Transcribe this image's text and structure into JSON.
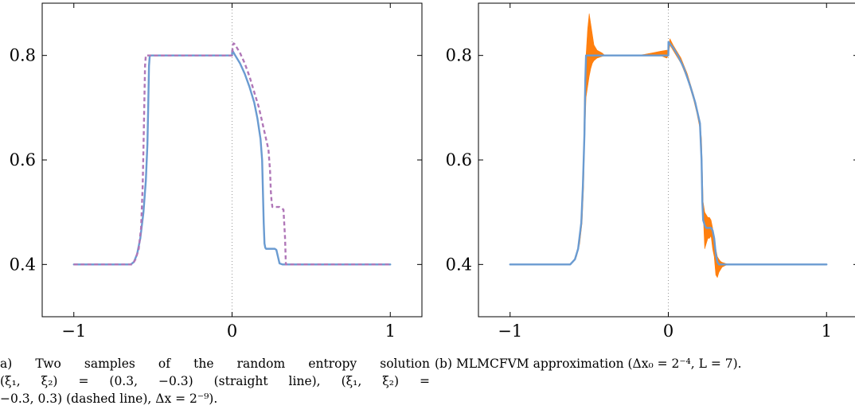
{
  "panels": [
    {
      "x_ticks": [
        "−1",
        "0",
        "1"
      ],
      "y_ticks": [
        "0.4",
        "0.6",
        "0.8"
      ],
      "caption_lines": [
        "a)  Two  samples  of  the  random  entropy  solution",
        "(ξ₁, ξ₂)    =    (0.3, −0.3)  (straight  line),  (ξ₁, ξ₂)    =",
        "−0.3, 0.3) (dashed line), Δx = 2⁻⁹)."
      ]
    },
    {
      "x_ticks": [
        "−1",
        "0",
        "1"
      ],
      "y_ticks": [
        "0.4",
        "0.6",
        "0.8"
      ],
      "caption_lines": [
        "(b) MLMCFVM approximation (Δx₀ = 2⁻⁴, L = 7)."
      ]
    }
  ],
  "colors": {
    "blue": "#6a9bd1",
    "purple": "#b077b8",
    "orange": "#ff7f0e",
    "zeroline": "#999999"
  },
  "chart_data": [
    {
      "type": "line",
      "xlim": [
        -1.2,
        1.2
      ],
      "ylim": [
        0.3,
        0.9
      ],
      "grid": false,
      "series": [
        {
          "style": "solid",
          "color": "#6a9bd1",
          "x": [
            -1,
            -0.64,
            -0.62,
            -0.6,
            -0.58,
            -0.56,
            -0.545,
            -0.535,
            -0.53,
            -0.525,
            -0.52,
            -0.51,
            0,
            0.001,
            0.02,
            0.05,
            0.08,
            0.11,
            0.14,
            0.16,
            0.18,
            0.19,
            0.195,
            0.2,
            0.205,
            0.21,
            0.215,
            0.22,
            0.25,
            0.27,
            0.28,
            0.29,
            0.3,
            0.32,
            1
          ],
          "y": [
            0.4,
            0.4,
            0.405,
            0.42,
            0.45,
            0.5,
            0.56,
            0.63,
            0.7,
            0.78,
            0.8,
            0.8,
            0.8,
            0.81,
            0.8,
            0.785,
            0.765,
            0.74,
            0.71,
            0.68,
            0.64,
            0.6,
            0.54,
            0.48,
            0.44,
            0.432,
            0.43,
            0.43,
            0.43,
            0.43,
            0.428,
            0.415,
            0.402,
            0.4,
            0.4
          ]
        },
        {
          "style": "dashed",
          "color": "#b077b8",
          "x": [
            -1,
            -0.63,
            -0.61,
            -0.59,
            -0.575,
            -0.565,
            -0.56,
            -0.555,
            -0.55,
            -0.545,
            -0.54,
            0,
            0.005,
            0.01,
            0.015,
            0.02,
            0.05,
            0.08,
            0.11,
            0.14,
            0.17,
            0.2,
            0.23,
            0.24,
            0.245,
            0.25,
            0.255,
            0.26,
            0.3,
            0.325,
            0.335,
            0.34,
            1
          ],
          "y": [
            0.4,
            0.4,
            0.41,
            0.43,
            0.47,
            0.55,
            0.62,
            0.7,
            0.78,
            0.8,
            0.8,
            0.8,
            0.82,
            0.823,
            0.822,
            0.82,
            0.805,
            0.785,
            0.76,
            0.73,
            0.7,
            0.66,
            0.62,
            0.58,
            0.54,
            0.52,
            0.51,
            0.51,
            0.51,
            0.505,
            0.45,
            0.4,
            0.4
          ]
        }
      ]
    },
    {
      "type": "area",
      "xlim": [
        -1.2,
        1.2
      ],
      "ylim": [
        0.3,
        0.9
      ],
      "grid": false,
      "series": [
        {
          "style": "band",
          "color": "#ff7f0e",
          "x": [
            -1,
            -0.63,
            -0.6,
            -0.58,
            -0.56,
            -0.545,
            -0.535,
            -0.53,
            -0.52,
            -0.51,
            -0.5,
            -0.49,
            -0.48,
            -0.47,
            -0.45,
            -0.42,
            -0.4,
            -0.3,
            -0.2,
            -0.15,
            -0.1,
            -0.05,
            -0.01,
            0,
            0.01,
            0.03,
            0.05,
            0.08,
            0.1,
            0.12,
            0.14,
            0.16,
            0.18,
            0.2,
            0.21,
            0.22,
            0.23,
            0.24,
            0.25,
            0.26,
            0.27,
            0.28,
            0.29,
            0.3,
            0.31,
            0.32,
            0.33,
            0.34,
            0.36,
            0.38,
            0.4,
            0.42,
            0.45,
            1
          ],
          "lower": [
            0.4,
            0.4,
            0.405,
            0.415,
            0.44,
            0.48,
            0.55,
            0.63,
            0.72,
            0.74,
            0.76,
            0.775,
            0.785,
            0.79,
            0.795,
            0.798,
            0.8,
            0.8,
            0.8,
            0.8,
            0.8,
            0.8,
            0.795,
            0.8,
            0.82,
            0.81,
            0.8,
            0.785,
            0.77,
            0.755,
            0.735,
            0.715,
            0.69,
            0.66,
            0.6,
            0.5,
            0.43,
            0.44,
            0.45,
            0.45,
            0.455,
            0.43,
            0.415,
            0.38,
            0.375,
            0.385,
            0.39,
            0.395,
            0.398,
            0.4,
            0.4,
            0.4,
            0.4,
            0.4
          ],
          "upper": [
            0.4,
            0.4,
            0.405,
            0.415,
            0.45,
            0.52,
            0.62,
            0.72,
            0.8,
            0.85,
            0.88,
            0.86,
            0.84,
            0.82,
            0.81,
            0.805,
            0.8,
            0.8,
            0.8,
            0.802,
            0.805,
            0.808,
            0.81,
            0.81,
            0.832,
            0.82,
            0.81,
            0.795,
            0.78,
            0.765,
            0.745,
            0.725,
            0.7,
            0.67,
            0.64,
            0.52,
            0.5,
            0.495,
            0.49,
            0.49,
            0.485,
            0.47,
            0.44,
            0.43,
            0.415,
            0.41,
            0.406,
            0.404,
            0.402,
            0.4,
            0.4,
            0.4,
            0.4,
            0.4
          ]
        },
        {
          "style": "solid",
          "color": "#6a9bd1",
          "x": [
            -1,
            -0.62,
            -0.59,
            -0.57,
            -0.55,
            -0.54,
            -0.53,
            -0.525,
            -0.52,
            -0.5,
            0,
            0.001,
            0.03,
            0.06,
            0.1,
            0.14,
            0.17,
            0.2,
            0.21,
            0.215,
            0.22,
            0.23,
            0.24,
            0.25,
            0.26,
            0.27,
            0.28,
            0.29,
            0.3,
            0.31,
            0.32,
            0.34,
            0.36,
            0.4,
            1
          ],
          "y": [
            0.4,
            0.4,
            0.41,
            0.43,
            0.48,
            0.55,
            0.65,
            0.75,
            0.8,
            0.8,
            0.8,
            0.826,
            0.815,
            0.8,
            0.775,
            0.74,
            0.71,
            0.67,
            0.6,
            0.52,
            0.485,
            0.475,
            0.47,
            0.47,
            0.47,
            0.47,
            0.465,
            0.45,
            0.42,
            0.405,
            0.4,
            0.4,
            0.4,
            0.4,
            0.4
          ]
        }
      ]
    }
  ]
}
